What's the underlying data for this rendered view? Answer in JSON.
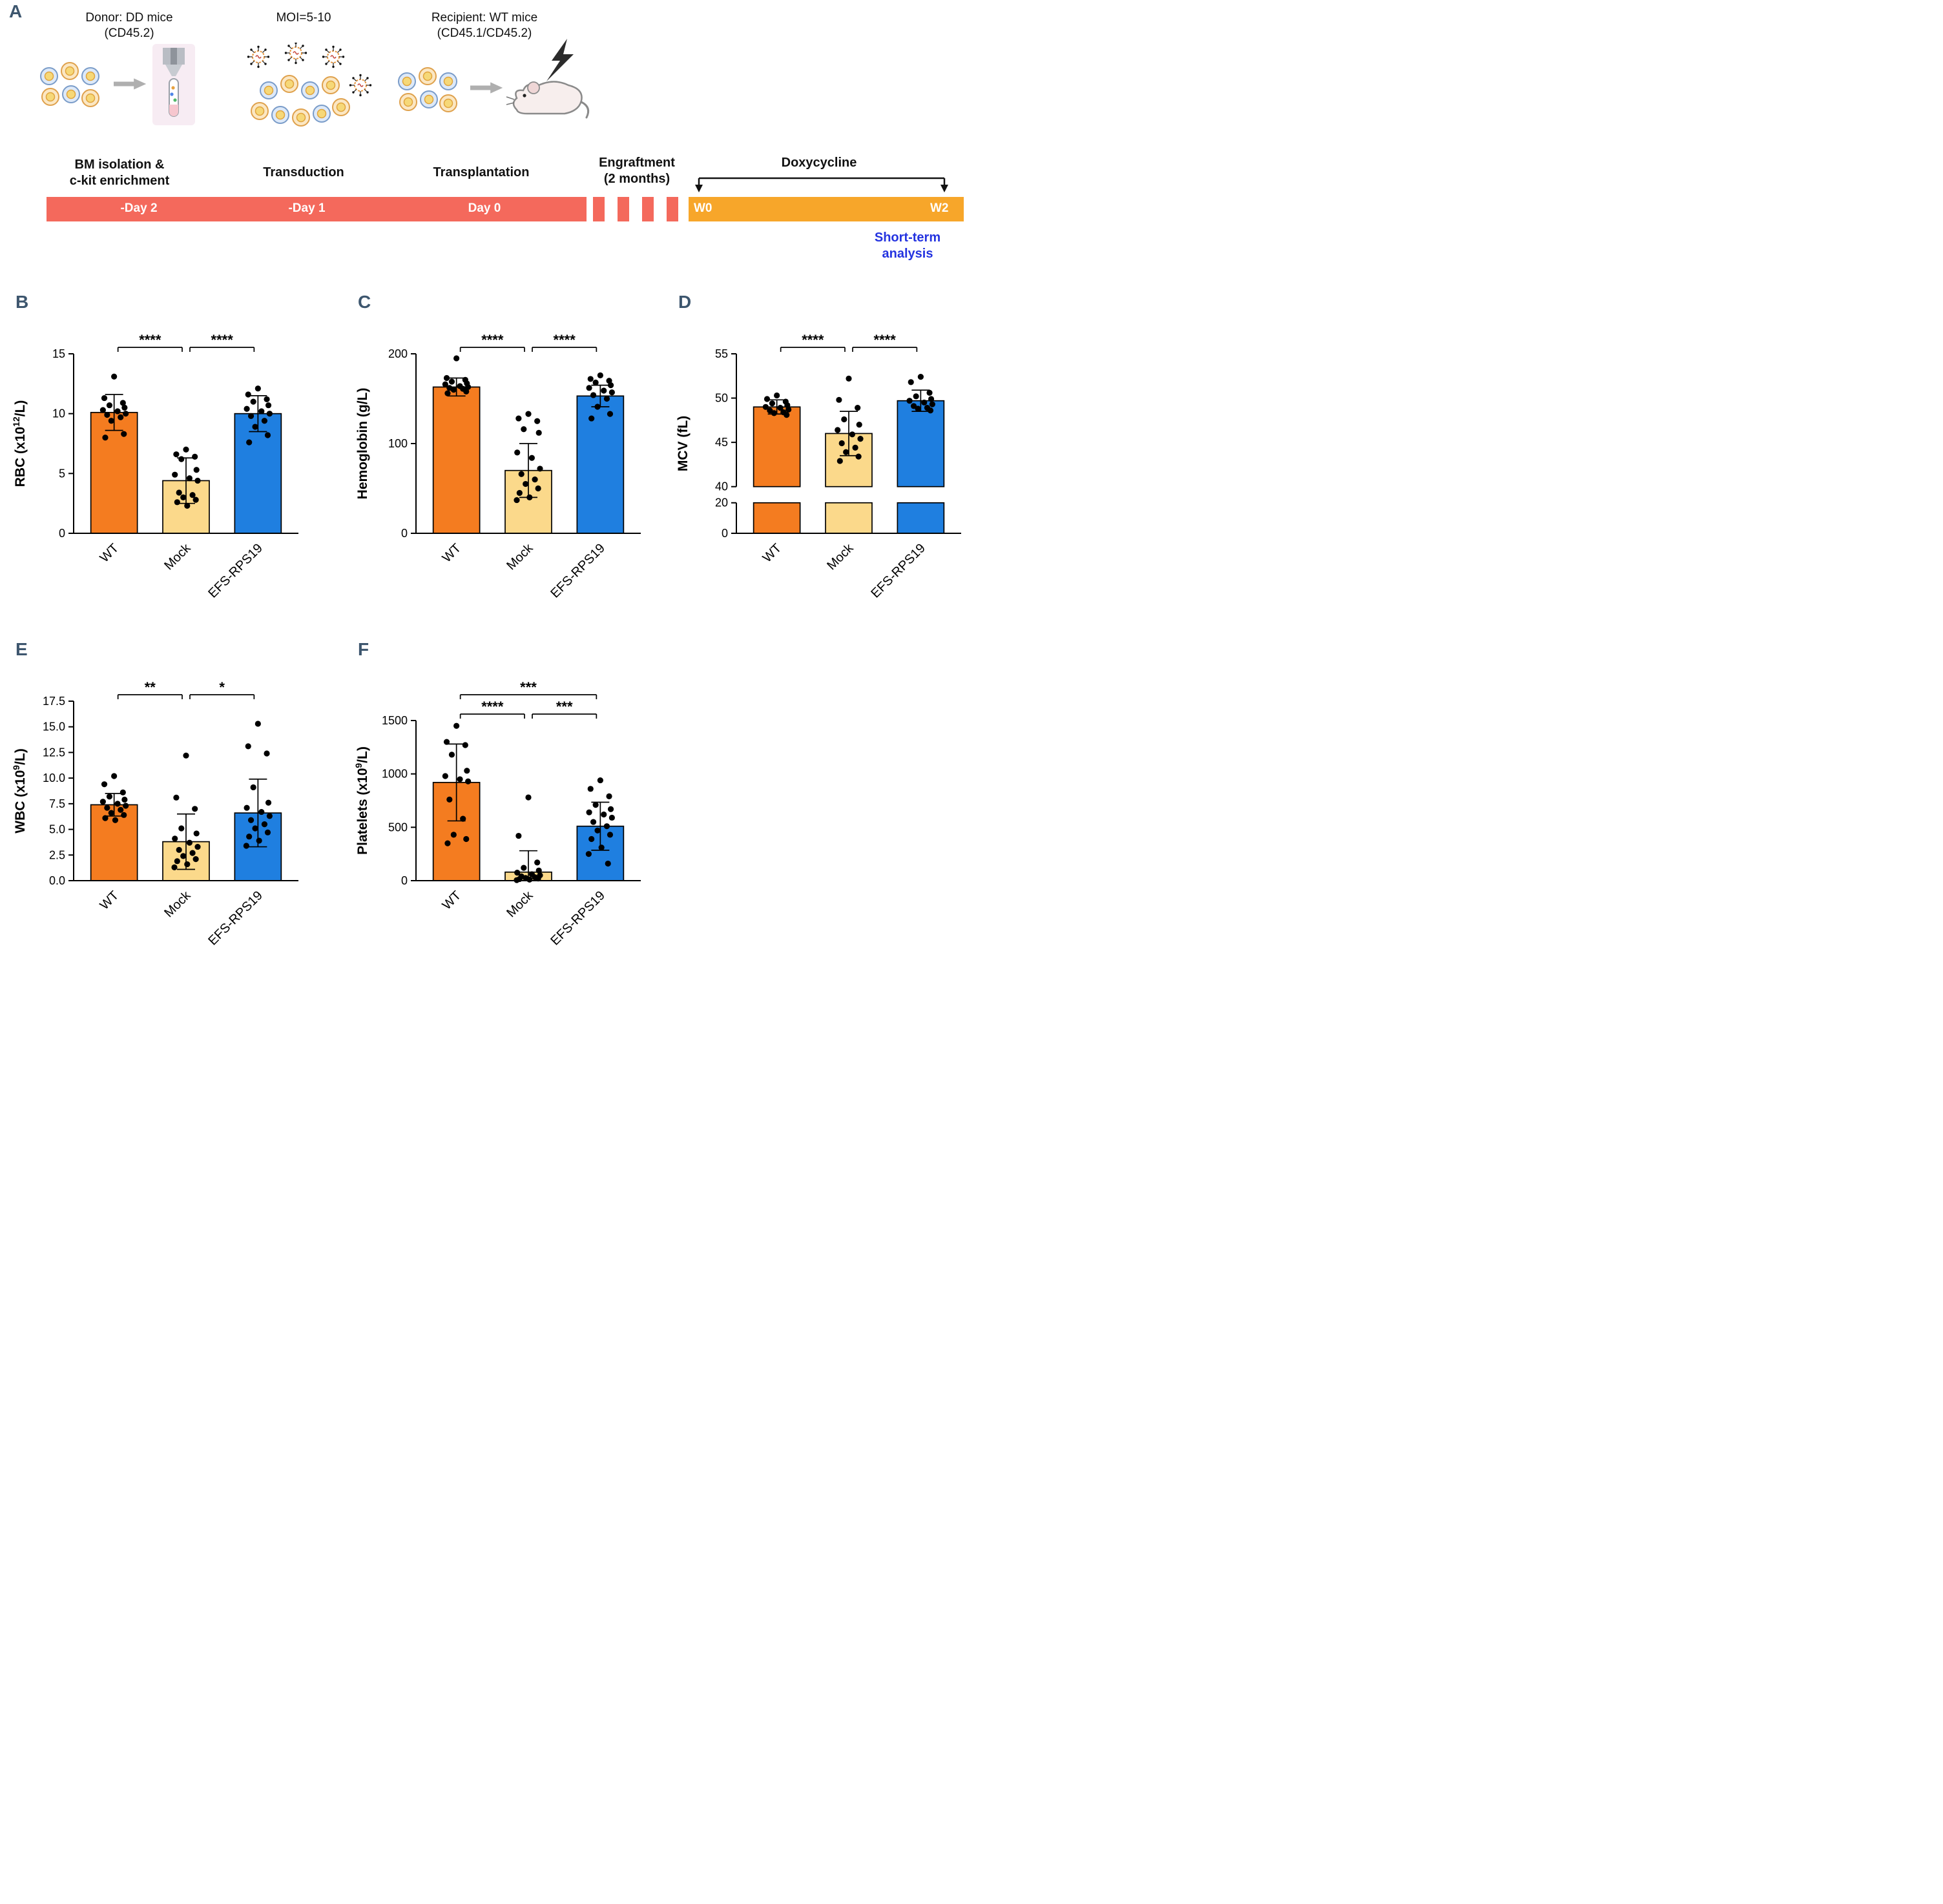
{
  "colors": {
    "bars": [
      "#F47C20",
      "#FBD98B",
      "#1F7FE0"
    ],
    "wt_orange": "#F47C20",
    "mock_yellow": "#FBD98B",
    "efs_blue": "#1F7FE0",
    "timeline_red": "#F4695C",
    "timeline_orange": "#F7A62A",
    "short_term_blue": "#2433E0",
    "panel_label": "#3D566E"
  },
  "schematic": {
    "panel_label": "A",
    "donor": {
      "title1": "Donor: DD mice",
      "title2": "(CD45.2)",
      "caption1": "BM isolation &",
      "caption2": "c-kit enrichment"
    },
    "moi": {
      "title": "MOI=5-10",
      "caption": "Transduction"
    },
    "recipient": {
      "title1": "Recipient: WT mice",
      "title2": "(CD45.1/CD45.2)",
      "caption": "Transplantation"
    },
    "engraftment": {
      "line1": "Engraftment",
      "line2": "(2 months)"
    },
    "doxycycline": "Doxycycline",
    "timeline": {
      "day2": "-Day 2",
      "day1": "-Day 1",
      "day0": "Day 0",
      "w0": "W0",
      "w2": "W2"
    },
    "short_term": {
      "line1": "Short-term",
      "line2": "analysis"
    }
  },
  "chart_data": [
    {
      "panel_label": "B",
      "type": "bar",
      "ylabel": "RBC (x10^12/L)",
      "ylabel_parts": [
        {
          "t": "RBC (x10"
        },
        {
          "t": "12",
          "sup": true
        },
        {
          "t": "/L)"
        }
      ],
      "categories": [
        "WT",
        "Mock",
        "EFS-RPS19"
      ],
      "means": [
        10.1,
        4.4,
        10.0
      ],
      "sd": [
        1.5,
        1.9,
        1.5
      ],
      "points": [
        [
          13.1,
          11.3,
          10.9,
          10.7,
          10.5,
          10.3,
          10.2,
          10.0,
          9.9,
          9.7,
          9.4,
          8.3,
          8.0
        ],
        [
          7.0,
          6.6,
          6.4,
          6.2,
          5.3,
          4.9,
          4.6,
          4.4,
          3.4,
          3.2,
          3.0,
          2.8,
          2.6,
          2.3
        ],
        [
          12.1,
          11.6,
          11.2,
          11.0,
          10.7,
          10.4,
          10.2,
          10.0,
          9.8,
          9.4,
          8.9,
          8.2,
          7.6
        ]
      ],
      "yticks": [
        {
          "v": 0,
          "label": "0"
        },
        {
          "v": 5,
          "label": "5"
        },
        {
          "v": 10,
          "label": "10"
        },
        {
          "v": 15,
          "label": "15"
        }
      ],
      "ylim": [
        0,
        15
      ],
      "axis_segments": [
        {
          "domain": [
            0,
            15
          ],
          "frac": [
            0,
            1
          ]
        }
      ],
      "significance": [
        {
          "g1": 0,
          "g2": 1,
          "label": "****",
          "row": 0
        },
        {
          "g1": 1,
          "g2": 2,
          "label": "****",
          "row": 0
        }
      ]
    },
    {
      "panel_label": "C",
      "type": "bar",
      "ylabel": "Hemoglobin (g/L)",
      "ylabel_parts": [
        {
          "t": "Hemoglobin (g/L)"
        }
      ],
      "categories": [
        "WT",
        "Mock",
        "EFS-RPS19"
      ],
      "means": [
        163,
        70,
        153
      ],
      "sd": [
        10,
        30,
        12
      ],
      "points": [
        [
          195,
          173,
          171,
          169,
          167,
          166,
          164,
          163,
          162,
          161,
          160,
          158,
          156
        ],
        [
          133,
          128,
          125,
          116,
          112,
          90,
          84,
          72,
          66,
          60,
          55,
          50,
          45,
          40,
          37
        ],
        [
          176,
          172,
          170,
          168,
          165,
          162,
          159,
          157,
          154,
          150,
          141,
          133,
          128
        ]
      ],
      "yticks": [
        {
          "v": 0,
          "label": "0"
        },
        {
          "v": 100,
          "label": "100"
        },
        {
          "v": 200,
          "label": "200"
        }
      ],
      "ylim": [
        0,
        200
      ],
      "axis_segments": [
        {
          "domain": [
            0,
            200
          ],
          "frac": [
            0,
            1
          ]
        }
      ],
      "significance": [
        {
          "g1": 0,
          "g2": 1,
          "label": "****",
          "row": 0
        },
        {
          "g1": 1,
          "g2": 2,
          "label": "****",
          "row": 0
        }
      ]
    },
    {
      "panel_label": "D",
      "type": "bar",
      "ylabel": "MCV (fL)",
      "ylabel_parts": [
        {
          "t": "MCV (fL)"
        }
      ],
      "categories": [
        "WT",
        "Mock",
        "EFS-RPS19"
      ],
      "means": [
        49.0,
        46.0,
        49.7
      ],
      "sd": [
        0.8,
        2.5,
        1.2
      ],
      "points": [
        [
          50.3,
          49.9,
          49.6,
          49.4,
          49.2,
          49.0,
          48.9,
          48.7,
          48.6,
          48.4,
          48.3,
          48.1
        ],
        [
          52.2,
          49.8,
          48.9,
          47.6,
          47.0,
          46.4,
          45.9,
          45.4,
          44.9,
          44.4,
          43.9,
          43.4,
          42.9
        ],
        [
          52.4,
          51.8,
          50.6,
          50.2,
          49.9,
          49.7,
          49.5,
          49.3,
          49.1,
          48.9,
          48.8,
          48.6
        ]
      ],
      "yticks": [
        {
          "v": 0,
          "label": "0"
        },
        {
          "v": 20,
          "label": "20"
        },
        {
          "v": 40,
          "label": "40"
        },
        {
          "v": 45,
          "label": "45"
        },
        {
          "v": 50,
          "label": "50"
        },
        {
          "v": 55,
          "label": "55"
        }
      ],
      "ylim": [
        0,
        55
      ],
      "axis_break": [
        20,
        40
      ],
      "axis_segments": [
        {
          "domain": [
            0,
            20
          ],
          "frac": [
            0,
            0.17
          ]
        },
        {
          "domain": [
            40,
            55
          ],
          "frac": [
            0.26,
            1
          ]
        }
      ],
      "significance": [
        {
          "g1": 0,
          "g2": 1,
          "label": "****",
          "row": 0
        },
        {
          "g1": 1,
          "g2": 2,
          "label": "****",
          "row": 0
        }
      ]
    },
    {
      "panel_label": "E",
      "type": "bar",
      "ylabel": "WBC (x10^9/L)",
      "ylabel_parts": [
        {
          "t": "WBC (x10"
        },
        {
          "t": "9",
          "sup": true
        },
        {
          "t": "/L)"
        }
      ],
      "categories": [
        "WT",
        "Mock",
        "EFS-RPS19"
      ],
      "means": [
        7.4,
        3.8,
        6.6
      ],
      "sd": [
        1.1,
        2.7,
        3.3
      ],
      "points": [
        [
          10.2,
          9.4,
          8.6,
          8.2,
          7.9,
          7.7,
          7.5,
          7.3,
          7.1,
          6.9,
          6.6,
          6.4,
          6.1,
          5.9
        ],
        [
          12.2,
          8.1,
          7.0,
          5.1,
          4.6,
          4.1,
          3.7,
          3.3,
          3.0,
          2.7,
          2.4,
          2.1,
          1.9,
          1.6,
          1.3
        ],
        [
          15.3,
          13.1,
          12.4,
          9.1,
          7.6,
          7.1,
          6.7,
          6.3,
          5.9,
          5.5,
          5.1,
          4.7,
          4.3,
          3.9,
          3.4
        ]
      ],
      "yticks": [
        {
          "v": 0,
          "label": "0.0"
        },
        {
          "v": 2.5,
          "label": "2.5"
        },
        {
          "v": 5,
          "label": "5.0"
        },
        {
          "v": 7.5,
          "label": "7.5"
        },
        {
          "v": 10,
          "label": "10.0"
        },
        {
          "v": 12.5,
          "label": "12.5"
        },
        {
          "v": 15,
          "label": "15.0"
        },
        {
          "v": 17.5,
          "label": "17.5"
        }
      ],
      "ylim": [
        0,
        17.5
      ],
      "axis_segments": [
        {
          "domain": [
            0,
            17.5
          ],
          "frac": [
            0,
            1
          ]
        }
      ],
      "significance": [
        {
          "g1": 0,
          "g2": 1,
          "label": "**",
          "row": 0
        },
        {
          "g1": 1,
          "g2": 2,
          "label": "*",
          "row": 0
        }
      ]
    },
    {
      "panel_label": "F",
      "type": "bar",
      "ylabel": "Platelets (x10^9/L)",
      "ylabel_parts": [
        {
          "t": "Platelets (x10"
        },
        {
          "t": "9",
          "sup": true
        },
        {
          "t": "/L)"
        }
      ],
      "categories": [
        "WT",
        "Mock",
        "EFS-RPS19"
      ],
      "means": [
        920,
        80,
        510
      ],
      "sd": [
        360,
        200,
        225
      ],
      "points": [
        [
          1450,
          1300,
          1270,
          1180,
          1030,
          980,
          950,
          930,
          760,
          580,
          430,
          390,
          350
        ],
        [
          780,
          420,
          170,
          120,
          95,
          75,
          60,
          50,
          40,
          32,
          25,
          20,
          15,
          10,
          5
        ],
        [
          940,
          860,
          790,
          710,
          670,
          640,
          620,
          590,
          550,
          510,
          470,
          430,
          390,
          310,
          250,
          160
        ]
      ],
      "yticks": [
        {
          "v": 0,
          "label": "0"
        },
        {
          "v": 500,
          "label": "500"
        },
        {
          "v": 1000,
          "label": "1000"
        },
        {
          "v": 1500,
          "label": "1500"
        }
      ],
      "ylim": [
        0,
        1500
      ],
      "axis_segments": [
        {
          "domain": [
            0,
            1500
          ],
          "frac": [
            0,
            1
          ]
        }
      ],
      "significance": [
        {
          "g1": 0,
          "g2": 1,
          "label": "****",
          "row": 0
        },
        {
          "g1": 1,
          "g2": 2,
          "label": "***",
          "row": 0
        },
        {
          "g1": 0,
          "g2": 2,
          "label": "***",
          "row": 1
        }
      ]
    }
  ]
}
